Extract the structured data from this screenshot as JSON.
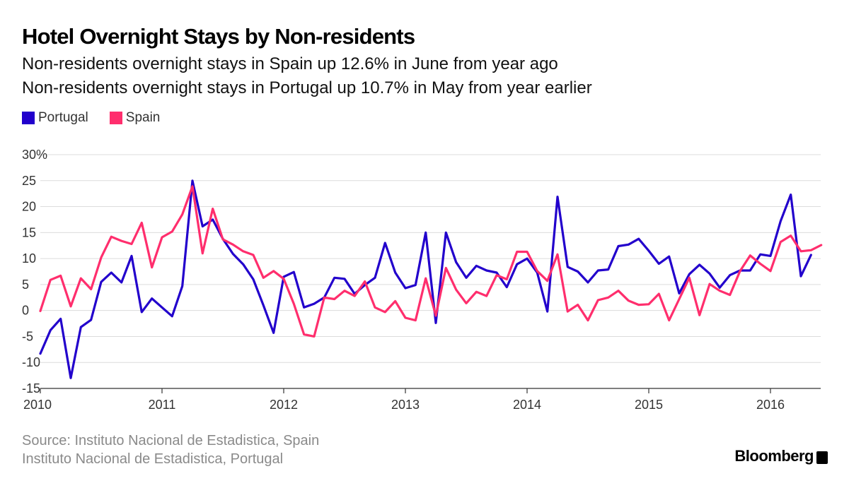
{
  "header": {
    "title": "Hotel Overnight Stays by Non-residents",
    "subtitle1": "Non-residents overnight stays in Spain up 12.6% in June from year ago",
    "subtitle2": "Non-residents overnight stays in Portugal up 10.7% in May from year earlier"
  },
  "legend": {
    "items": [
      {
        "label": "Portugal",
        "color": "#2200cc"
      },
      {
        "label": "Spain",
        "color": "#ff2e6d"
      }
    ]
  },
  "footer": {
    "source1": "Source: Instituto Nacional de Estadistica, Spain",
    "source2": "Instituto Nacional de Estadistica, Portugal",
    "brand": "Bloomberg"
  },
  "chart_data": {
    "type": "line",
    "x_unit": "month",
    "start_month": "2010-01",
    "xlim": [
      "2010-01",
      "2016-06"
    ],
    "ylim": [
      -15,
      30
    ],
    "y_ticks": [
      30,
      25,
      20,
      15,
      10,
      5,
      0,
      -5,
      -10,
      -15
    ],
    "y_tick_labels": [
      "30%",
      "25",
      "20",
      "15",
      "10",
      "5",
      "0",
      "-5",
      "-10",
      "-15"
    ],
    "x_ticks": [
      "2010",
      "2011",
      "2012",
      "2013",
      "2014",
      "2015",
      "2016"
    ],
    "grid": true,
    "legend_position": "top-left",
    "series": [
      {
        "name": "Portugal",
        "color": "#2200cc",
        "values": [
          -8.3,
          -3.8,
          -1.6,
          -13.0,
          -3.2,
          -1.8,
          5.5,
          7.3,
          5.4,
          10.5,
          -0.3,
          2.3,
          0.6,
          -1.1,
          4.7,
          25.0,
          16.2,
          17.5,
          13.8,
          10.9,
          8.9,
          6.0,
          1.0,
          -4.3,
          6.5,
          7.4,
          0.6,
          1.3,
          2.5,
          6.3,
          6.1,
          3.2,
          4.9,
          6.3,
          13.0,
          7.3,
          4.3,
          4.9,
          15.0,
          -2.4,
          15.0,
          9.3,
          6.3,
          8.6,
          7.7,
          7.3,
          4.5,
          8.9,
          10.0,
          7.3,
          -0.2,
          21.9,
          8.4,
          7.5,
          5.4,
          7.7,
          7.9,
          12.4,
          12.7,
          13.8,
          11.5,
          9.0,
          10.4,
          3.3,
          7.0,
          8.8,
          7.1,
          4.4,
          6.8,
          7.7,
          7.7,
          10.8,
          10.5,
          17.2,
          22.3,
          6.6,
          10.7
        ]
      },
      {
        "name": "Spain",
        "color": "#ff2e6d",
        "values": [
          -0.1,
          5.9,
          6.7,
          0.8,
          6.2,
          4.1,
          10.2,
          14.2,
          13.4,
          12.8,
          16.9,
          8.3,
          14.1,
          15.2,
          18.5,
          23.9,
          11.0,
          19.6,
          13.7,
          12.7,
          11.4,
          10.7,
          6.3,
          7.6,
          6.1,
          1.3,
          -4.6,
          -5.0,
          2.5,
          2.2,
          3.8,
          2.8,
          5.6,
          0.6,
          -0.3,
          1.8,
          -1.4,
          -1.9,
          6.2,
          -1.0,
          8.2,
          4.0,
          1.4,
          3.6,
          2.8,
          6.8,
          6.0,
          11.3,
          11.3,
          7.6,
          5.7,
          10.8,
          -0.2,
          1.1,
          -1.9,
          2.0,
          2.5,
          3.8,
          1.9,
          1.1,
          1.2,
          3.2,
          -1.9,
          2.2,
          6.3,
          -0.9,
          5.1,
          3.8,
          3.0,
          7.6,
          10.6,
          9.0,
          7.6,
          13.2,
          14.4,
          11.4,
          11.6,
          12.6
        ]
      }
    ]
  }
}
